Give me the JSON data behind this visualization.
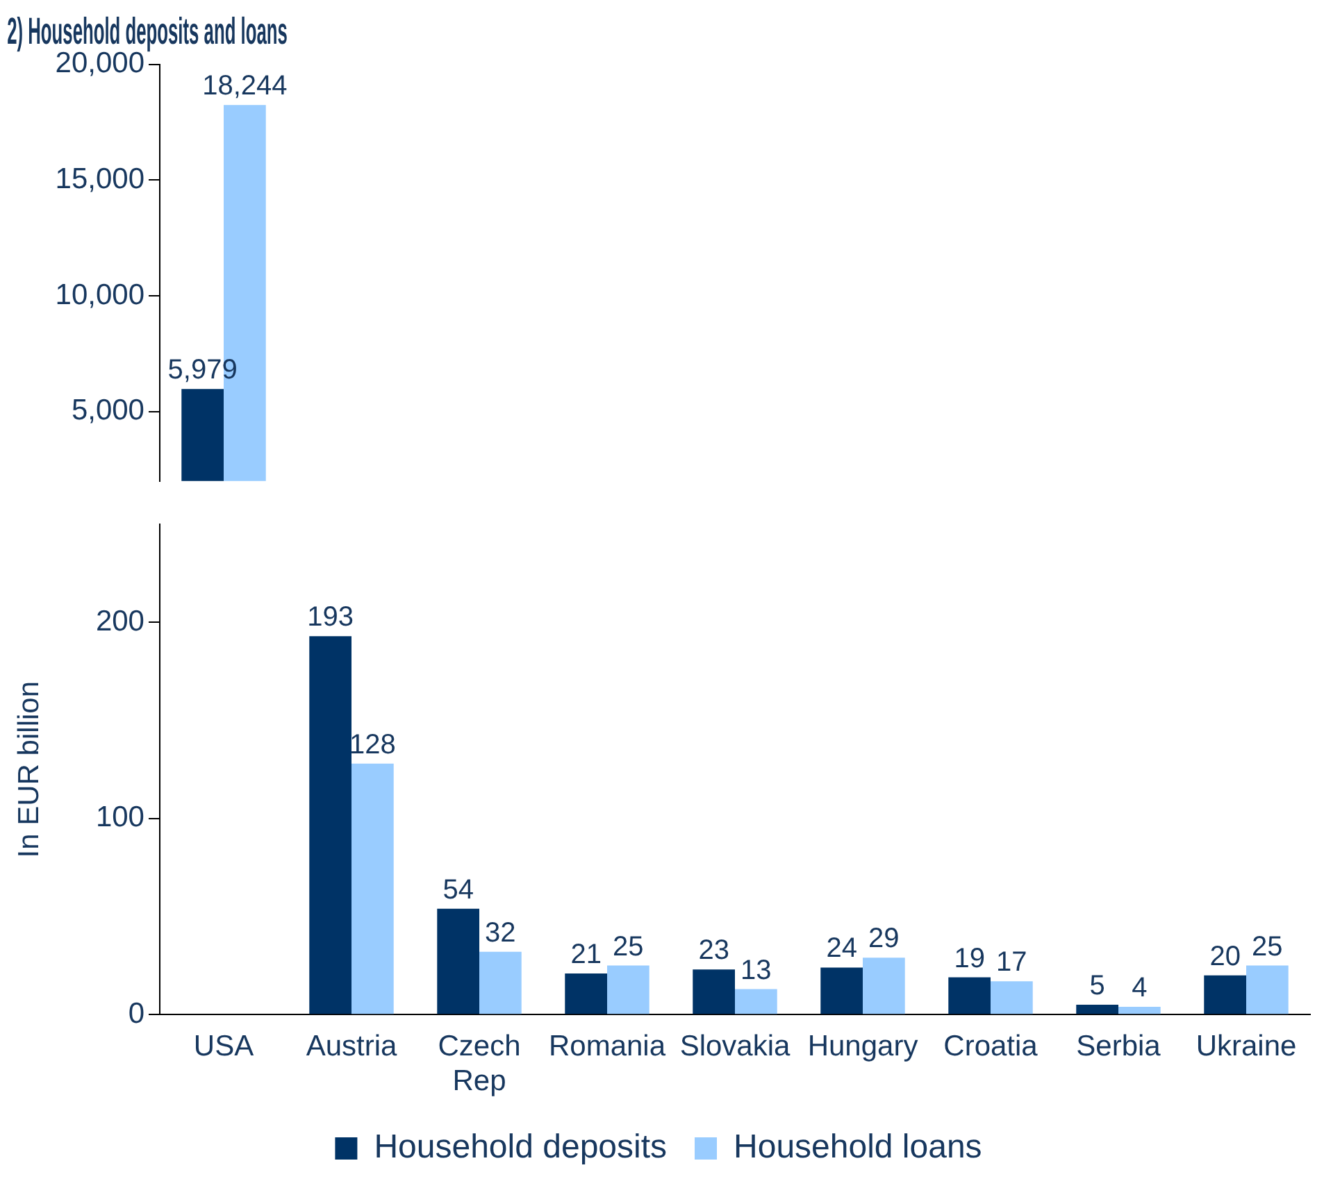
{
  "chart_data": [
    {
      "type": "bar",
      "title": "2) Household deposits and loans",
      "categories": [
        null
      ],
      "series": [
        {
          "color": "#003366",
          "values": [
            5979
          ],
          "value_labels": [
            "5,979"
          ]
        },
        {
          "color": "#99ccff",
          "values": [
            18244
          ],
          "value_labels": [
            "18,244"
          ]
        }
      ],
      "ylim": [
        2000,
        20000
      ],
      "yticks": [
        {
          "value": 5000,
          "label": "5,000"
        },
        {
          "value": 10000,
          "label": "10,000"
        },
        {
          "value": 15000,
          "label": "15,000"
        },
        {
          "value": 20000,
          "label": "20,000"
        }
      ],
      "tick_labels": "y",
      "grid": false
    },
    {
      "type": "bar",
      "ylabel": "In EUR billion",
      "categories": [
        "USA",
        "Austria",
        "Czech Rep",
        "Romania",
        "Slovakia",
        "Hungary",
        "Croatia",
        "Serbia",
        "Ukraine"
      ],
      "series": [
        {
          "name": "Household deposits",
          "color": "#003366",
          "values": [
            null,
            193,
            54,
            21,
            23,
            24,
            19,
            5,
            20
          ],
          "value_labels": [
            null,
            "193",
            "54",
            "21",
            "23",
            "24",
            "19",
            "5",
            "20"
          ]
        },
        {
          "name": "Household loans",
          "color": "#99ccff",
          "values": [
            null,
            128,
            32,
            25,
            13,
            29,
            17,
            4,
            25
          ],
          "value_labels": [
            null,
            "128",
            "32",
            "25",
            "13",
            "29",
            "17",
            "4",
            "25"
          ]
        }
      ],
      "ylim": [
        0,
        250
      ],
      "yticks": [
        0,
        100,
        200
      ],
      "grid": false,
      "legend": "bottom"
    }
  ]
}
